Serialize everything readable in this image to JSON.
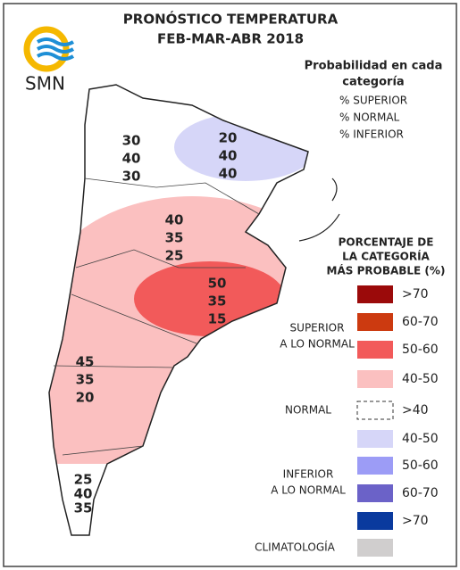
{
  "header": {
    "title": "PRONÓSTICO TEMPERATURA",
    "subtitle": "FEB-MAR-ABR 2018",
    "logo": "SMN"
  },
  "probability_key": {
    "title": [
      "Probabilidad en cada",
      "categoría"
    ],
    "lines": [
      "% SUPERIOR",
      "% NORMAL",
      "% INFERIOR"
    ]
  },
  "regions": [
    {
      "values": [
        30,
        40,
        30
      ]
    },
    {
      "values": [
        20,
        40,
        40
      ]
    },
    {
      "values": [
        40,
        35,
        25
      ]
    },
    {
      "values": [
        50,
        35,
        15
      ]
    },
    {
      "values": [
        45,
        35,
        20
      ]
    },
    {
      "values": [
        25,
        40,
        35
      ]
    }
  ],
  "legend": {
    "title": [
      "PORCENTAJE DE",
      "LA CATEGORÍA",
      "MÁS PROBABLE (%)"
    ],
    "items": [
      {
        "label": ">70",
        "color": "#9b0a0a"
      },
      {
        "label": "60-70",
        "color": "#cc3a10"
      },
      {
        "label": "50-60",
        "color": "#f25a5a"
      },
      {
        "label": "40-50",
        "color": "#fbc0c0"
      },
      {
        "label": ">40",
        "color": "none",
        "dashed": true
      },
      {
        "label": "40-50",
        "color": "#d6d6f8"
      },
      {
        "label": "50-60",
        "color": "#9c9cf6"
      },
      {
        "label": "60-70",
        "color": "#6b62c8"
      },
      {
        "label": ">70",
        "color": "#0a3a9e"
      },
      {
        "color": "#d0cece"
      }
    ],
    "groups": [
      {
        "lines": [
          "SUPERIOR",
          "A LO NORMAL"
        ]
      },
      {
        "lines": [
          "NORMAL"
        ]
      },
      {
        "lines": [
          "INFERIOR",
          "A LO NORMAL"
        ]
      },
      {
        "lines": [
          "CLIMATOLOGÍA"
        ]
      }
    ]
  }
}
